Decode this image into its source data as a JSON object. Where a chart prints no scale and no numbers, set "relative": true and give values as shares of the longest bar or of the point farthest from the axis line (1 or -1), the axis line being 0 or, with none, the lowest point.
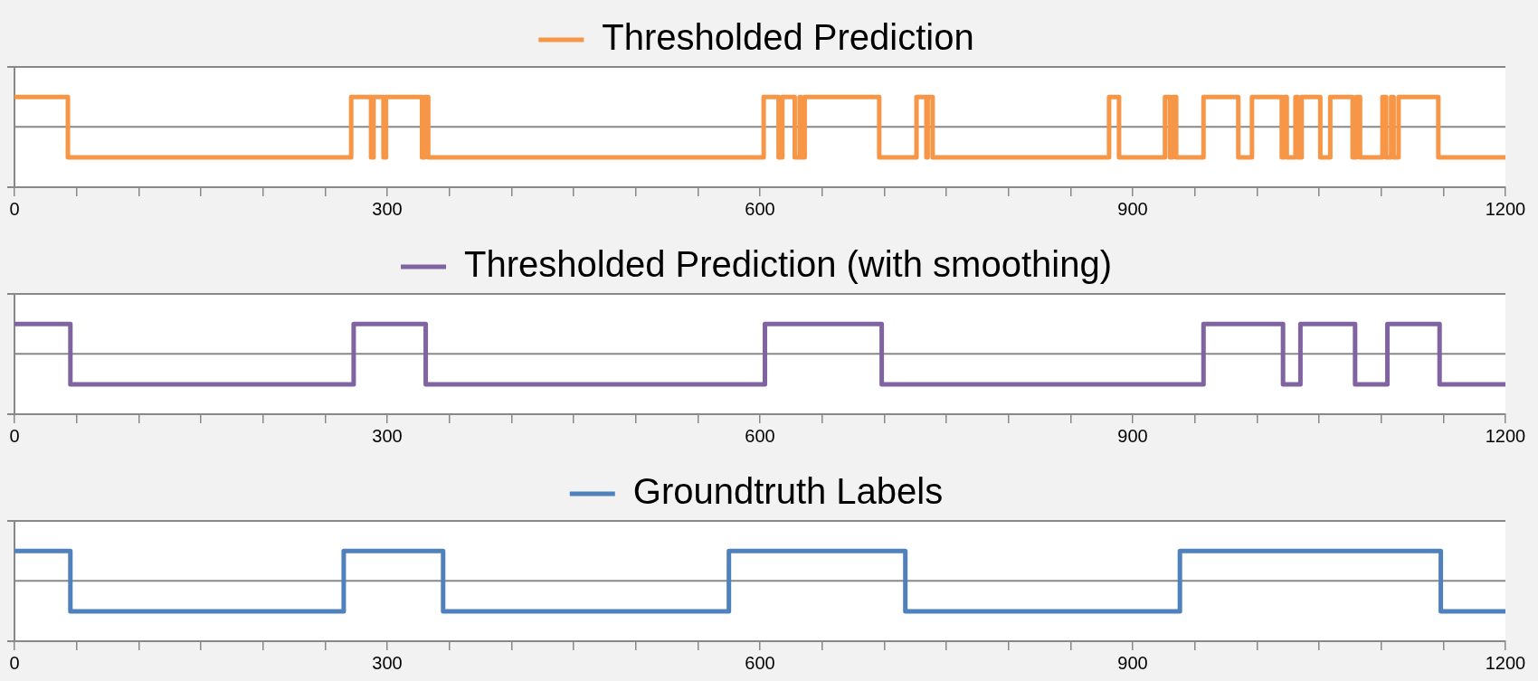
{
  "chart_data": [
    {
      "type": "step",
      "relative": true,
      "legend": "top",
      "tick_labels": "x",
      "xlim": [
        0,
        1200
      ],
      "ref_lines": [
        {
          "axis": "y",
          "value": 0.67,
          "color": "#888888"
        }
      ],
      "xticks": [
        0,
        {
          "value": 50,
          "label": null
        },
        {
          "value": 100,
          "label": null
        },
        {
          "value": 150,
          "label": null
        },
        {
          "value": 200,
          "label": null
        },
        {
          "value": 250,
          "label": null
        },
        300,
        {
          "value": 350,
          "label": null
        },
        {
          "value": 400,
          "label": null
        },
        {
          "value": 450,
          "label": null
        },
        {
          "value": 500,
          "label": null
        },
        {
          "value": 550,
          "label": null
        },
        600,
        {
          "value": 650,
          "label": null
        },
        {
          "value": 700,
          "label": null
        },
        {
          "value": 750,
          "label": null
        },
        {
          "value": 800,
          "label": null
        },
        {
          "value": 850,
          "label": null
        },
        900,
        {
          "value": 950,
          "label": null
        },
        {
          "value": 1000,
          "label": null
        },
        {
          "value": 1050,
          "label": null
        },
        {
          "value": 1100,
          "label": null
        },
        {
          "value": 1150,
          "label": null
        },
        1200
      ],
      "series": [
        {
          "name": "Thresholded Prediction",
          "color": "#f79646",
          "x": [
            0,
            43,
            271,
            287,
            289,
            297,
            299,
            328,
            330,
            333,
            603,
            615,
            618,
            628,
            632,
            633,
            636,
            696,
            726,
            734,
            735,
            739,
            881,
            889,
            926,
            930,
            932,
            935,
            957,
            985,
            996,
            1020,
            1022,
            1024,
            1031,
            1033,
            1036,
            1051,
            1059,
            1077,
            1080,
            1083,
            1101,
            1104,
            1108,
            1110,
            1114,
            1146,
            1200
          ],
          "values": [
            1,
            0.33,
            1,
            0.33,
            1,
            0.33,
            1,
            0.33,
            1,
            0.33,
            1,
            0.33,
            1,
            0.33,
            1,
            0.33,
            1,
            0.33,
            1,
            0.33,
            1,
            0.33,
            1,
            0.33,
            1,
            0.33,
            1,
            0.33,
            1,
            0.33,
            1,
            0.33,
            1,
            0.33,
            1,
            0.33,
            1,
            0.33,
            1,
            0.33,
            1,
            0.33,
            1,
            0.33,
            1,
            0.33,
            1,
            0.33,
            0.33
          ]
        }
      ]
    },
    {
      "type": "step",
      "relative": true,
      "legend": "top",
      "tick_labels": "x",
      "xlim": [
        0,
        1200
      ],
      "ref_lines": [
        {
          "axis": "y",
          "value": 0.67,
          "color": "#888888"
        }
      ],
      "xticks": [
        0,
        {
          "value": 50,
          "label": null
        },
        {
          "value": 100,
          "label": null
        },
        {
          "value": 150,
          "label": null
        },
        {
          "value": 200,
          "label": null
        },
        {
          "value": 250,
          "label": null
        },
        300,
        {
          "value": 350,
          "label": null
        },
        {
          "value": 400,
          "label": null
        },
        {
          "value": 450,
          "label": null
        },
        {
          "value": 500,
          "label": null
        },
        {
          "value": 550,
          "label": null
        },
        600,
        {
          "value": 650,
          "label": null
        },
        {
          "value": 700,
          "label": null
        },
        {
          "value": 750,
          "label": null
        },
        {
          "value": 800,
          "label": null
        },
        {
          "value": 850,
          "label": null
        },
        900,
        {
          "value": 950,
          "label": null
        },
        {
          "value": 1000,
          "label": null
        },
        {
          "value": 1050,
          "label": null
        },
        {
          "value": 1100,
          "label": null
        },
        {
          "value": 1150,
          "label": null
        },
        1200
      ],
      "series": [
        {
          "name": "Thresholded Prediction (with smoothing)",
          "color": "#8064a2",
          "x": [
            0,
            45,
            273,
            331,
            604,
            698,
            957,
            1021,
            1035,
            1079,
            1105,
            1147,
            1200
          ],
          "values": [
            1,
            0.33,
            1,
            0.33,
            1,
            0.33,
            1,
            0.33,
            1,
            0.33,
            1,
            0.33,
            0.33
          ]
        }
      ]
    },
    {
      "type": "step",
      "relative": true,
      "legend": "top",
      "tick_labels": "x",
      "xlim": [
        0,
        1200
      ],
      "ref_lines": [
        {
          "axis": "y",
          "value": 0.67,
          "color": "#888888"
        }
      ],
      "xticks": [
        0,
        {
          "value": 50,
          "label": null
        },
        {
          "value": 100,
          "label": null
        },
        {
          "value": 150,
          "label": null
        },
        {
          "value": 200,
          "label": null
        },
        {
          "value": 250,
          "label": null
        },
        300,
        {
          "value": 350,
          "label": null
        },
        {
          "value": 400,
          "label": null
        },
        {
          "value": 450,
          "label": null
        },
        {
          "value": 500,
          "label": null
        },
        {
          "value": 550,
          "label": null
        },
        600,
        {
          "value": 650,
          "label": null
        },
        {
          "value": 700,
          "label": null
        },
        {
          "value": 750,
          "label": null
        },
        {
          "value": 800,
          "label": null
        },
        {
          "value": 850,
          "label": null
        },
        900,
        {
          "value": 950,
          "label": null
        },
        {
          "value": 1000,
          "label": null
        },
        {
          "value": 1050,
          "label": null
        },
        {
          "value": 1100,
          "label": null
        },
        {
          "value": 1150,
          "label": null
        },
        1200
      ],
      "series": [
        {
          "name": "Groundtruth Labels",
          "color": "#4f81bd",
          "x": [
            0,
            45,
            265,
            345,
            575,
            717,
            938,
            1148,
            1200
          ],
          "values": [
            1,
            0.33,
            1,
            0.33,
            1,
            0.33,
            1,
            0.33,
            0.33
          ]
        }
      ]
    }
  ]
}
